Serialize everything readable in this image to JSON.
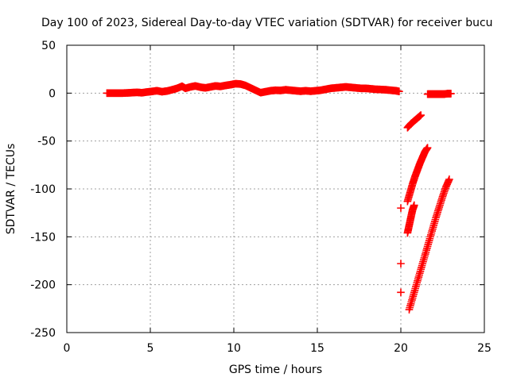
{
  "chart_data": {
    "type": "scatter",
    "title": "Day 100 of 2023, Sidereal Day-to-day VTEC variation (SDTVAR) for receiver bucu",
    "xlabel": "GPS time / hours",
    "ylabel": "SDTVAR / TECUs",
    "xlim": [
      0,
      25
    ],
    "ylim": [
      -250,
      50
    ],
    "xticks": [
      0,
      5,
      10,
      15,
      20,
      25
    ],
    "yticks": [
      50,
      0,
      -50,
      -100,
      -150,
      -200,
      -250
    ],
    "grid": true,
    "marker": "+",
    "color": "#ff0000",
    "series": [
      {
        "values": [
          [
            2.4,
            0
          ],
          [
            2.7,
            0
          ],
          [
            3.0,
            0
          ],
          [
            3.3,
            0
          ],
          [
            3.6,
            0.2
          ],
          [
            3.9,
            0.5
          ],
          [
            4.2,
            0.8
          ],
          [
            4.5,
            0.4
          ],
          [
            4.8,
            1.2
          ],
          [
            5.1,
            1.8
          ],
          [
            5.4,
            2.5
          ],
          [
            5.7,
            1.5
          ],
          [
            6.0,
            2.2
          ],
          [
            6.3,
            3.5
          ],
          [
            6.6,
            5.0
          ],
          [
            6.9,
            7.2
          ],
          [
            7.1,
            5.0
          ],
          [
            7.4,
            6.5
          ],
          [
            7.7,
            7.5
          ],
          [
            8.0,
            6.2
          ],
          [
            8.3,
            5.5
          ],
          [
            8.6,
            6.5
          ],
          [
            8.9,
            7.5
          ],
          [
            9.2,
            7.0
          ],
          [
            9.5,
            8.0
          ],
          [
            9.8,
            8.8
          ],
          [
            10.1,
            9.8
          ],
          [
            10.4,
            9.5
          ],
          [
            10.7,
            8.0
          ],
          [
            11.0,
            5.5
          ],
          [
            11.3,
            3.0
          ],
          [
            11.6,
            0.5
          ],
          [
            11.9,
            1.5
          ],
          [
            12.2,
            2.5
          ],
          [
            12.5,
            3.0
          ],
          [
            12.8,
            2.8
          ],
          [
            13.1,
            3.5
          ],
          [
            13.4,
            3.0
          ],
          [
            13.7,
            2.5
          ],
          [
            14.0,
            2.0
          ],
          [
            14.3,
            2.5
          ],
          [
            14.6,
            2.0
          ],
          [
            14.9,
            2.5
          ],
          [
            15.2,
            3.0
          ],
          [
            15.5,
            4.0
          ],
          [
            15.8,
            5.0
          ],
          [
            16.1,
            5.5
          ],
          [
            16.4,
            6.0
          ],
          [
            16.7,
            6.5
          ],
          [
            17.0,
            6.0
          ],
          [
            17.3,
            5.5
          ],
          [
            17.6,
            5.0
          ],
          [
            17.9,
            5.0
          ],
          [
            18.2,
            4.5
          ],
          [
            18.5,
            4.0
          ],
          [
            18.8,
            3.8
          ],
          [
            19.1,
            3.5
          ],
          [
            19.4,
            3.0
          ],
          [
            19.7,
            2.5
          ],
          [
            19.9,
            1.8
          ],
          [
            20.0,
            -120
          ],
          [
            20.0,
            -178
          ],
          [
            20.0,
            -208
          ],
          [
            20.4,
            -36
          ],
          [
            20.6,
            -32
          ],
          [
            20.8,
            -29
          ],
          [
            21.0,
            -26
          ],
          [
            21.2,
            -23
          ],
          [
            20.4,
            -113
          ],
          [
            20.55,
            -104
          ],
          [
            20.7,
            -95
          ],
          [
            20.85,
            -87
          ],
          [
            21.0,
            -80
          ],
          [
            21.15,
            -73
          ],
          [
            21.3,
            -67
          ],
          [
            21.45,
            -61
          ],
          [
            21.6,
            -57
          ],
          [
            20.4,
            -146
          ],
          [
            20.5,
            -138
          ],
          [
            20.6,
            -130
          ],
          [
            20.7,
            -122
          ],
          [
            20.8,
            -117
          ],
          [
            20.5,
            -226
          ],
          [
            20.7,
            -214
          ],
          [
            20.9,
            -202
          ],
          [
            21.1,
            -190
          ],
          [
            21.3,
            -178
          ],
          [
            21.5,
            -166
          ],
          [
            21.7,
            -154
          ],
          [
            21.9,
            -142
          ],
          [
            22.1,
            -130
          ],
          [
            22.3,
            -119
          ],
          [
            22.5,
            -108
          ],
          [
            22.7,
            -98
          ],
          [
            22.9,
            -90
          ],
          [
            21.6,
            -1
          ],
          [
            21.8,
            -1
          ],
          [
            22.0,
            -1
          ],
          [
            22.2,
            -1
          ],
          [
            22.4,
            -1
          ],
          [
            22.6,
            -1
          ],
          [
            22.8,
            -0.5
          ],
          [
            23.0,
            -0.5
          ]
        ]
      }
    ]
  }
}
